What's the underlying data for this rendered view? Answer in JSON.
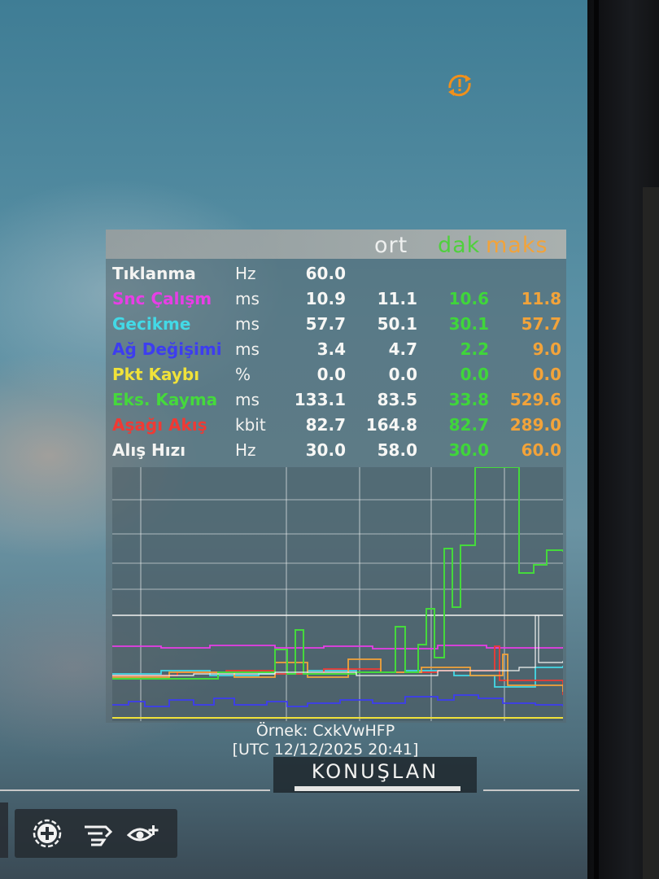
{
  "header": {
    "avg": "ort",
    "min": "dak",
    "max": "maks"
  },
  "rows": [
    {
      "label": "Tıklanma",
      "unit": "Hz",
      "v1": "60.0",
      "v2": "",
      "v3": "",
      "v4": "",
      "color": "#f4f4f2"
    },
    {
      "label": "Snc Çalışm",
      "unit": "ms",
      "v1": "10.9",
      "v2": "11.1",
      "v3": "10.6",
      "v4": "11.8",
      "color": "#e83ee6"
    },
    {
      "label": "Gecikme",
      "unit": "ms",
      "v1": "57.7",
      "v2": "50.1",
      "v3": "30.1",
      "v4": "57.7",
      "color": "#43d9e6"
    },
    {
      "label": "Ağ Değişimi",
      "unit": "ms",
      "v1": "3.4",
      "v2": "4.7",
      "v3": "2.2",
      "v4": "9.0",
      "color": "#3d3df0"
    },
    {
      "label": "Pkt Kaybı",
      "unit": "%",
      "v1": "0.0",
      "v2": "0.0",
      "v3": "0.0",
      "v4": "0.0",
      "color": "#f0e23a"
    },
    {
      "label": "Eks. Kayma",
      "unit": "ms",
      "v1": "133.1",
      "v2": "83.5",
      "v3": "33.8",
      "v4": "529.6",
      "color": "#45d93c"
    },
    {
      "label": "Aşağı Akış",
      "unit": "kbit",
      "v1": "82.7",
      "v2": "164.8",
      "v3": "82.7",
      "v4": "289.0",
      "color": "#ef3a34"
    },
    {
      "label": "Alış Hızı",
      "unit": "Hz",
      "v1": "30.0",
      "v2": "58.0",
      "v3": "30.0",
      "v4": "60.0",
      "color": "#f4f4f2"
    }
  ],
  "sample": {
    "id_line": "Örnek: CxkVwHFP",
    "time_line": "[UTC 12/12/2025 20:41]"
  },
  "tab": {
    "label": "KONUŞLAN"
  },
  "toolbar": {
    "icons": [
      "add-circle-icon",
      "fast-forward-hand-icon",
      "eye-plus-icon"
    ]
  },
  "colors": {
    "frame_time": "#e83ee6",
    "latency": "#43d9e6",
    "jitter": "#3d3df0",
    "packet_loss": "#f0e23a",
    "frame_pacing": "#45d93c",
    "downstream": "#ef3a34",
    "receive_rate": "#f4f4f2",
    "orange": "#f2a33a",
    "sync_icon": "#f0901c"
  }
}
